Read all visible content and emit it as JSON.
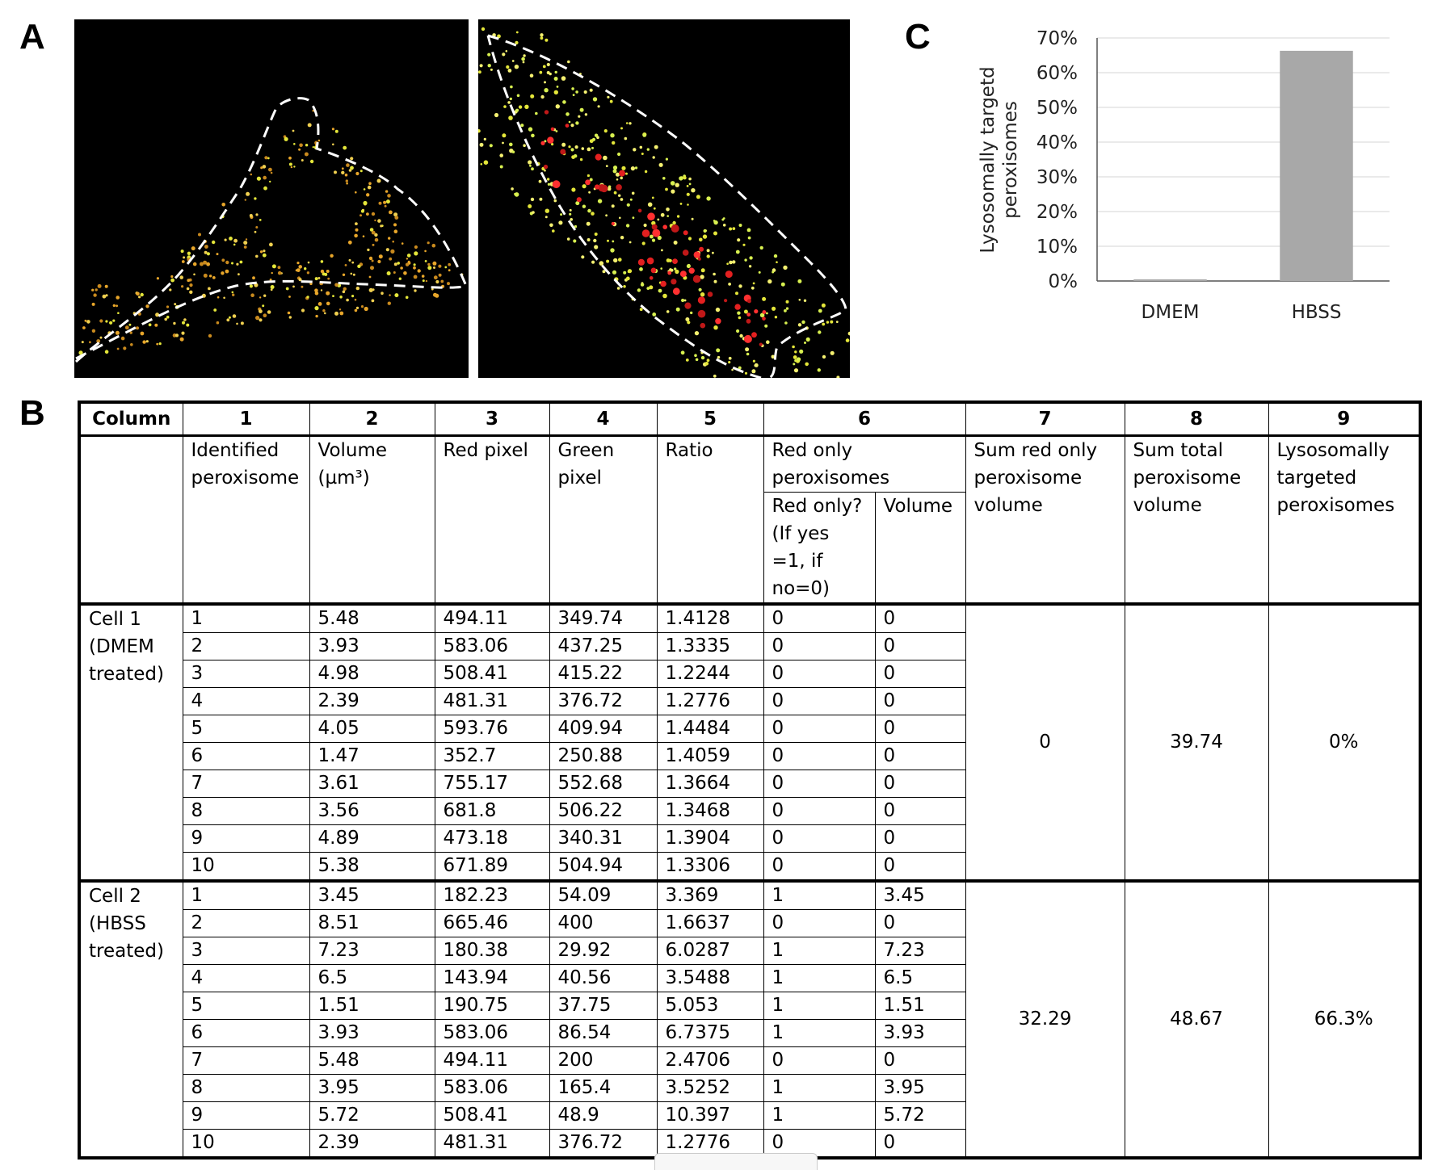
{
  "panels": {
    "a": "A",
    "b": "B",
    "c": "C"
  },
  "colors": {
    "bar": "#a8a8a8",
    "grid": "#e4e4e4",
    "dash": "#ffffff",
    "yellow_dots": "#e4e63a",
    "red": "#e32020",
    "orange_dots": "#e8a62a"
  },
  "chart_data": {
    "type": "bar",
    "categories": [
      "DMEM",
      "HBSS"
    ],
    "values": [
      0.0,
      66.3
    ],
    "ylabel": "Lysosomally targetd peroxisomes",
    "ylim": [
      0,
      70
    ],
    "yticks": [
      "0%",
      "10%",
      "20%",
      "30%",
      "40%",
      "50%",
      "60%",
      "70%"
    ],
    "grid": true
  },
  "table": {
    "col_numbers": [
      "Column",
      "1",
      "2",
      "3",
      "4",
      "5",
      "6",
      "7",
      "8",
      "9"
    ],
    "headers": {
      "c1": "Identified peroxisome",
      "c2": "Volume (µm³)",
      "c3": "Red pixel",
      "c4": "Green pixel",
      "c5": "Ratio",
      "c6": "Red only peroxisomes",
      "c6a": "Red only? (If yes =1, if no=0)",
      "c6b": "Volume",
      "c7": "Sum red only peroxisome volume",
      "c8": "Sum total peroxisome volume",
      "c9": "Lysosomally targeted peroxisomes"
    },
    "groups": [
      {
        "label": "Cell 1 (DMEM treated)",
        "sum_red": "0",
        "sum_total": "39.74",
        "targeted": "0%",
        "rows": [
          [
            "1",
            "5.48",
            "494.11",
            "349.74",
            "1.4128",
            "0",
            "0"
          ],
          [
            "2",
            "3.93",
            "583.06",
            "437.25",
            "1.3335",
            "0",
            "0"
          ],
          [
            "3",
            "4.98",
            "508.41",
            "415.22",
            "1.2244",
            "0",
            "0"
          ],
          [
            "4",
            "2.39",
            "481.31",
            "376.72",
            "1.2776",
            "0",
            "0"
          ],
          [
            "5",
            "4.05",
            "593.76",
            "409.94",
            "1.4484",
            "0",
            "0"
          ],
          [
            "6",
            "1.47",
            "352.7",
            "250.88",
            "1.4059",
            "0",
            "0"
          ],
          [
            "7",
            "3.61",
            "755.17",
            "552.68",
            "1.3664",
            "0",
            "0"
          ],
          [
            "8",
            "3.56",
            "681.8",
            "506.22",
            "1.3468",
            "0",
            "0"
          ],
          [
            "9",
            "4.89",
            "473.18",
            "340.31",
            "1.3904",
            "0",
            "0"
          ],
          [
            "10",
            "5.38",
            "671.89",
            "504.94",
            "1.3306",
            "0",
            "0"
          ]
        ]
      },
      {
        "label": "Cell 2 (HBSS treated)",
        "sum_red": "32.29",
        "sum_total": "48.67",
        "targeted": "66.3%",
        "rows": [
          [
            "1",
            "3.45",
            "182.23",
            "54.09",
            "3.369",
            "1",
            "3.45"
          ],
          [
            "2",
            "8.51",
            "665.46",
            "400",
            "1.6637",
            "0",
            "0"
          ],
          [
            "3",
            "7.23",
            "180.38",
            "29.92",
            "6.0287",
            "1",
            "7.23"
          ],
          [
            "4",
            "6.5",
            "143.94",
            "40.56",
            "3.5488",
            "1",
            "6.5"
          ],
          [
            "5",
            "1.51",
            "190.75",
            "37.75",
            "5.053",
            "1",
            "1.51"
          ],
          [
            "6",
            "3.93",
            "583.06",
            "86.54",
            "6.7375",
            "1",
            "3.93"
          ],
          [
            "7",
            "5.48",
            "494.11",
            "200",
            "2.4706",
            "0",
            "0"
          ],
          [
            "8",
            "3.95",
            "583.06",
            "165.4",
            "3.5252",
            "1",
            "3.95"
          ],
          [
            "9",
            "5.72",
            "508.41",
            "48.9",
            "10.397",
            "1",
            "5.72"
          ],
          [
            "10",
            "2.39",
            "481.31",
            "376.72",
            "1.2776",
            "0",
            "0"
          ]
        ]
      }
    ]
  }
}
